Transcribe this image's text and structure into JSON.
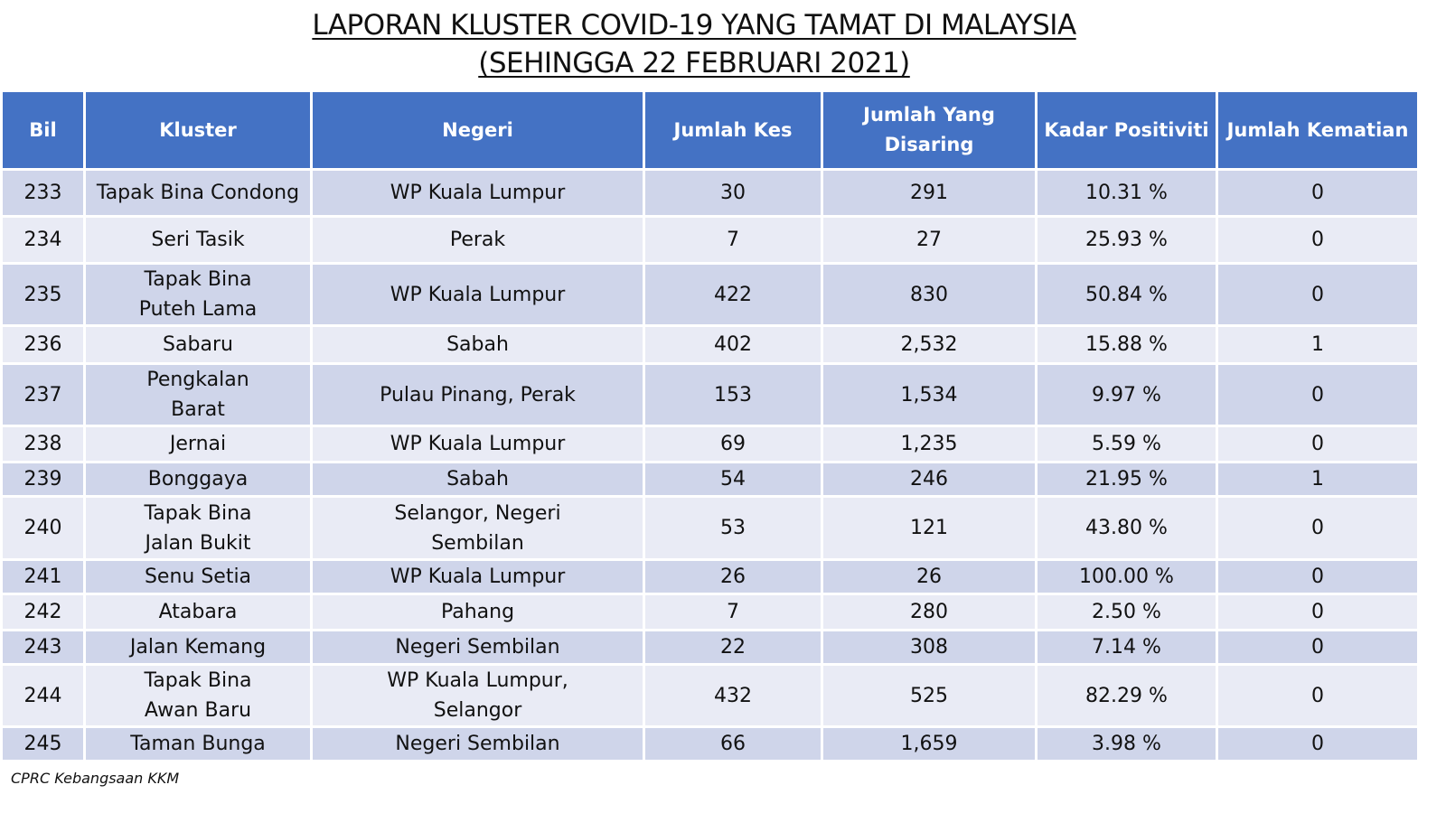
{
  "title_line1": "LAPORAN KLUSTER COVID-19 YANG TAMAT DI MALAYSIA",
  "title_line2": "(SEHINGGA  22 FEBRUARI 2021)",
  "headers": [
    "Bil",
    "Kluster",
    "Negeri",
    "Jumlah Kes",
    "Jumlah Yang Disaring",
    "Kadar Positiviti",
    "Jumlah Kematian"
  ],
  "rows": [
    [
      "233",
      "Tapak Bina Condong",
      "WP Kuala Lumpur",
      "30",
      "291",
      "10.31 %",
      "0"
    ],
    [
      "234",
      "Seri Tasik",
      "Perak",
      "7",
      "27",
      "25.93 %",
      "0"
    ],
    [
      "235",
      "Tapak Bina Puteh Lama",
      "WP Kuala Lumpur",
      "422",
      "830",
      "50.84 %",
      "0"
    ],
    [
      "236",
      "Sabaru",
      "Sabah",
      "402",
      "2,532",
      "15.88 %",
      "1"
    ],
    [
      "237",
      "Pengkalan Barat",
      "Pulau Pinang, Perak",
      "153",
      "1,534",
      "9.97 %",
      "0"
    ],
    [
      "238",
      "Jernai",
      "WP Kuala Lumpur",
      "69",
      "1,235",
      "5.59 %",
      "0"
    ],
    [
      "239",
      "Bonggaya",
      "Sabah",
      "54",
      "246",
      "21.95 %",
      "1"
    ],
    [
      "240",
      "Tapak Bina Jalan Bukit",
      "Selangor, Negeri Sembilan",
      "53",
      "121",
      "43.80 %",
      "0"
    ],
    [
      "241",
      "Senu Setia",
      "WP Kuala Lumpur",
      "26",
      "26",
      "100.00 %",
      "0"
    ],
    [
      "242",
      "Atabara",
      "Pahang",
      "7",
      "280",
      "2.50 %",
      "0"
    ],
    [
      "243",
      "Jalan Kemang",
      "Negeri Sembilan",
      "22",
      "308",
      "7.14 %",
      "0"
    ],
    [
      "244",
      "Tapak Bina Awan Baru",
      "WP Kuala Lumpur, Selangor",
      "432",
      "525",
      "82.29 %",
      "0"
    ],
    [
      "245",
      "Taman Bunga",
      "Negeri Sembilan",
      "66",
      "1,659",
      "3.98 %",
      "0"
    ]
  ],
  "footer": "CPRC Kebangsaan KKM",
  "colors": {
    "header": "#4472C4",
    "row_odd": "#CFD5EA",
    "row_even": "#E9EBF5"
  }
}
